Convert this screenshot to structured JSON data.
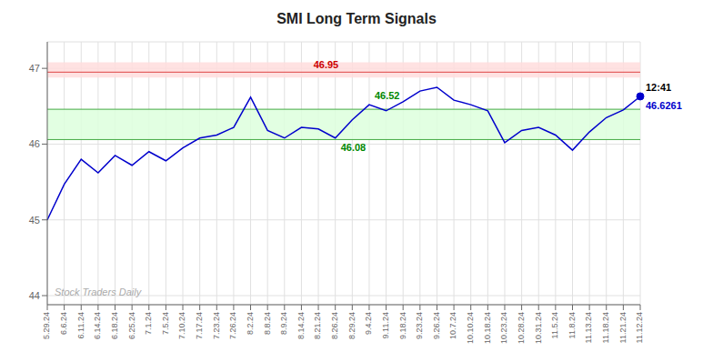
{
  "chart_data": {
    "type": "line",
    "title": "SMI Long Term Signals",
    "categories": [
      "5.29.24",
      "6.6.24",
      "6.11.24",
      "6.14.24",
      "6.18.24",
      "6.25.24",
      "7.1.24",
      "7.5.24",
      "7.10.24",
      "7.17.24",
      "7.23.24",
      "7.26.24",
      "8.2.24",
      "8.8.24",
      "8.9.24",
      "8.14.24",
      "8.21.24",
      "8.26.24",
      "8.29.24",
      "9.4.24",
      "9.11.24",
      "9.18.24",
      "9.23.24",
      "9.26.24",
      "10.7.24",
      "10.10.24",
      "10.18.24",
      "10.23.24",
      "10.28.24",
      "10.31.24",
      "11.5.24",
      "11.8.24",
      "11.13.24",
      "11.18.24",
      "11.21.24",
      "11.12.24"
    ],
    "values": [
      45.0,
      45.47,
      45.8,
      45.62,
      45.85,
      45.72,
      45.9,
      45.78,
      45.95,
      46.08,
      46.12,
      46.22,
      46.62,
      46.18,
      46.08,
      46.22,
      46.2,
      46.08,
      46.32,
      46.52,
      46.44,
      46.56,
      46.7,
      46.75,
      46.58,
      46.52,
      46.44,
      46.02,
      46.18,
      46.22,
      46.12,
      45.92,
      46.16,
      46.35,
      46.45,
      46.63
    ],
    "color": "#0000cc",
    "marker": "last",
    "ylim": [
      43.88,
      47.35
    ],
    "yticks": [
      44,
      45,
      46,
      47
    ],
    "grid": true,
    "reference_bands": [
      {
        "from": 46.88,
        "to": 47.08,
        "color": "#ffdddd"
      },
      {
        "from": 46.06,
        "to": 46.46,
        "color": "#ddffdd"
      }
    ],
    "reference_lines": [
      {
        "y": 46.95,
        "color": "#dd4444"
      },
      {
        "y": 46.46,
        "color": "#44aa44"
      },
      {
        "y": 46.06,
        "color": "#44aa44"
      }
    ],
    "annotations": [
      {
        "text": "46.95",
        "y": 46.95,
        "color": "#cc0000"
      },
      {
        "text": "46.52",
        "x": "9.4.24",
        "y": 46.52,
        "color": "#008800",
        "position": "above"
      },
      {
        "text": "46.08",
        "x": "8.26.24",
        "y": 46.08,
        "color": "#008800",
        "position": "below"
      },
      {
        "text": "12:41",
        "x": "11.12.24",
        "y": 46.63,
        "color": "#000000",
        "position": "above"
      },
      {
        "text": "46.6261",
        "x": "11.12.24",
        "y": 46.63,
        "color": "#0000cc",
        "position": "below"
      },
      {
        "text": "Stock Traders Daily",
        "color": "#aaaaaa"
      }
    ]
  }
}
